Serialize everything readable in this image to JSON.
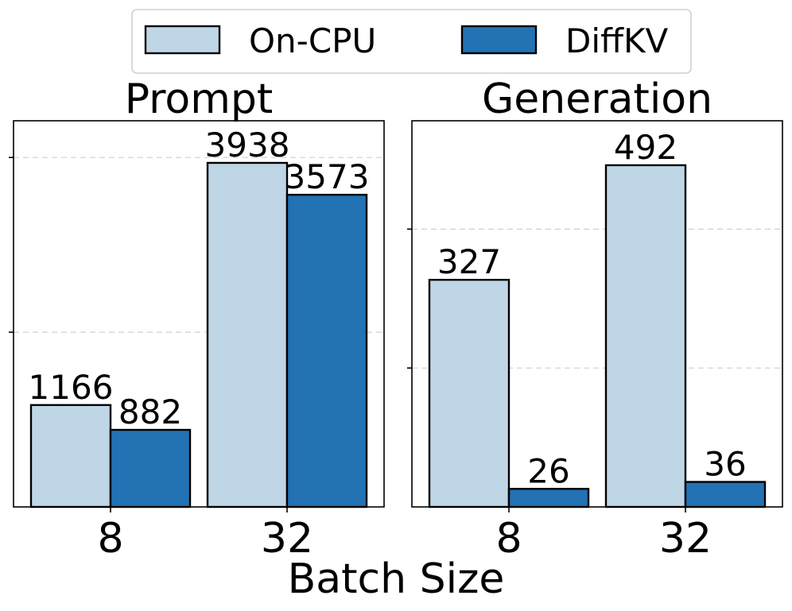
{
  "chart_data": {
    "type": "bar",
    "xlabel": "Batch Size",
    "legend": {
      "position": "top-center",
      "entries": [
        {
          "name": "On-CPU",
          "color": "#bed6e6"
        },
        {
          "name": "DiffKV",
          "color": "#2272b4"
        }
      ]
    },
    "panels": [
      {
        "title": "Prompt",
        "categories": [
          "8",
          "32"
        ],
        "ylim": [
          0,
          4420
        ],
        "yticks": [
          2000,
          4000
        ],
        "grid": "y-dashed",
        "series": [
          {
            "name": "On-CPU",
            "values": [
              1166,
              3938
            ]
          },
          {
            "name": "DiffKV",
            "values": [
              882,
              3573
            ]
          }
        ]
      },
      {
        "title": "Generation",
        "categories": [
          "8",
          "32"
        ],
        "ylim": [
          0,
          556
        ],
        "yticks": [
          200,
          400
        ],
        "grid": "y-dashed",
        "series": [
          {
            "name": "On-CPU",
            "values": [
              327,
              492
            ]
          },
          {
            "name": "DiffKV",
            "values": [
              26,
              36
            ]
          }
        ]
      }
    ]
  }
}
